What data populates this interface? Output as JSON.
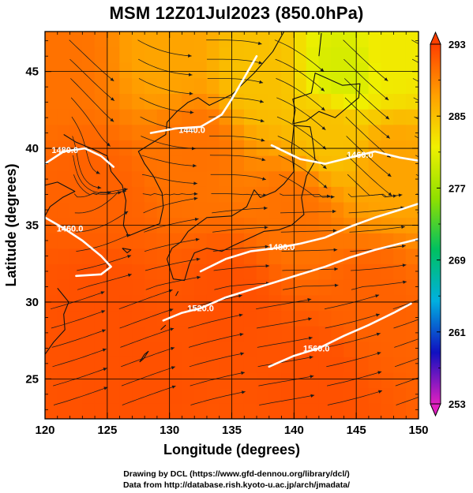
{
  "title": "MSM 12Z01Jul2023 (850.0hPa)",
  "credits": [
    "Drawing by DCL (https://www.gfd-dennou.org/library/dcl/)",
    "Data from http://database.rish.kyoto-u.ac.jp/arch/jmadata/"
  ],
  "chart_data": {
    "type": "heatmap",
    "title": "MSM 12Z01Jul2023 (850.0hPa)",
    "xlabel": "Longitude (degrees)",
    "ylabel": "Latitude  (degrees)",
    "xlim": [
      120,
      150
    ],
    "ylim": [
      22.4,
      47.6
    ],
    "x_ticks": [
      120,
      125,
      130,
      135,
      140,
      145,
      150
    ],
    "y_ticks": [
      25,
      30,
      35,
      40,
      45
    ],
    "grid": true,
    "colorbar": {
      "ticks": [
        253,
        261,
        269,
        277,
        285,
        293
      ],
      "range": [
        253,
        293
      ],
      "colors": [
        "#e020c0",
        "#1010c0",
        "#00b0e0",
        "#00c060",
        "#90e000",
        "#f0f000",
        "#ffa000",
        "#ff4000"
      ]
    },
    "temperature_field": [
      {
        "lon": 121,
        "lat": 46,
        "value": 290
      },
      {
        "lon": 130,
        "lat": 46,
        "value": 287
      },
      {
        "lon": 137,
        "lat": 45,
        "value": 285
      },
      {
        "lon": 144,
        "lat": 45,
        "value": 280
      },
      {
        "lon": 148,
        "lat": 46,
        "value": 282
      },
      {
        "lon": 143,
        "lat": 41,
        "value": 285
      },
      {
        "lon": 148,
        "lat": 39,
        "value": 287
      },
      {
        "lon": 124,
        "lat": 37,
        "value": 291
      },
      {
        "lon": 132,
        "lat": 40,
        "value": 290
      },
      {
        "lon": 140,
        "lat": 36,
        "value": 290
      },
      {
        "lon": 124,
        "lat": 30,
        "value": 292
      },
      {
        "lon": 135,
        "lat": 30,
        "value": 292
      },
      {
        "lon": 146,
        "lat": 30,
        "value": 291
      },
      {
        "lon": 127,
        "lat": 25,
        "value": 292
      },
      {
        "lon": 142,
        "lat": 25,
        "value": 292
      }
    ],
    "contours": [
      {
        "label": "1440.0",
        "label_lon": 131.8,
        "label_lat": 41.2,
        "path": [
          [
            128.5,
            41.0
          ],
          [
            130.5,
            41.3
          ],
          [
            132.5,
            41.4
          ],
          [
            134.2,
            42.2
          ],
          [
            135.0,
            43.2
          ],
          [
            136.0,
            44.6
          ],
          [
            137.0,
            46.0
          ]
        ]
      },
      {
        "label": "1460.0",
        "label_lon": 145.3,
        "label_lat": 39.6,
        "path": [
          [
            138.2,
            40.2
          ],
          [
            140.5,
            39.3
          ],
          [
            142.5,
            39.0
          ],
          [
            144.5,
            39.4
          ],
          [
            146.5,
            39.8
          ],
          [
            148.5,
            39.4
          ],
          [
            150.0,
            39.2
          ]
        ]
      },
      {
        "label": "1480.0",
        "label_lon": 121.6,
        "label_lat": 39.9,
        "path": [
          [
            120.0,
            39.0
          ],
          [
            121.5,
            39.8
          ],
          [
            123.2,
            40.0
          ],
          [
            124.5,
            39.5
          ],
          [
            125.5,
            38.8
          ]
        ]
      },
      {
        "label": "1460.0",
        "label_lon": 122.0,
        "label_lat": 34.8,
        "path": [
          [
            120.0,
            35.5
          ],
          [
            121.5,
            34.8
          ],
          [
            123.0,
            34.0
          ],
          [
            124.5,
            33.0
          ],
          [
            125.3,
            32.3
          ],
          [
            124.5,
            31.8
          ],
          [
            122.5,
            31.7
          ]
        ]
      },
      {
        "label": "1480.0",
        "label_lon": 139.0,
        "label_lat": 33.6,
        "path": [
          [
            132.5,
            32.0
          ],
          [
            134.5,
            32.8
          ],
          [
            136.5,
            33.3
          ],
          [
            138.5,
            33.5
          ],
          [
            140.5,
            33.8
          ],
          [
            142.5,
            34.2
          ],
          [
            144.5,
            34.9
          ],
          [
            146.5,
            35.5
          ],
          [
            148.5,
            36.0
          ],
          [
            150.0,
            36.4
          ]
        ]
      },
      {
        "label": "1520.0",
        "label_lon": 132.5,
        "label_lat": 29.6,
        "path": [
          [
            129.5,
            28.8
          ],
          [
            131.0,
            29.3
          ],
          [
            132.5,
            29.6
          ],
          [
            134.5,
            30.3
          ],
          [
            136.5,
            30.8
          ],
          [
            138.5,
            31.3
          ],
          [
            140.5,
            31.8
          ],
          [
            142.5,
            32.3
          ],
          [
            144.5,
            32.9
          ],
          [
            146.5,
            33.4
          ],
          [
            148.5,
            33.8
          ],
          [
            150.0,
            34.1
          ]
        ]
      },
      {
        "label": "1560.0",
        "label_lon": 141.8,
        "label_lat": 27.0,
        "path": [
          [
            138.0,
            25.8
          ],
          [
            140.0,
            26.5
          ],
          [
            142.0,
            27.0
          ],
          [
            144.0,
            27.8
          ],
          [
            146.0,
            28.5
          ],
          [
            148.0,
            29.3
          ],
          [
            149.4,
            29.9
          ]
        ]
      }
    ]
  }
}
